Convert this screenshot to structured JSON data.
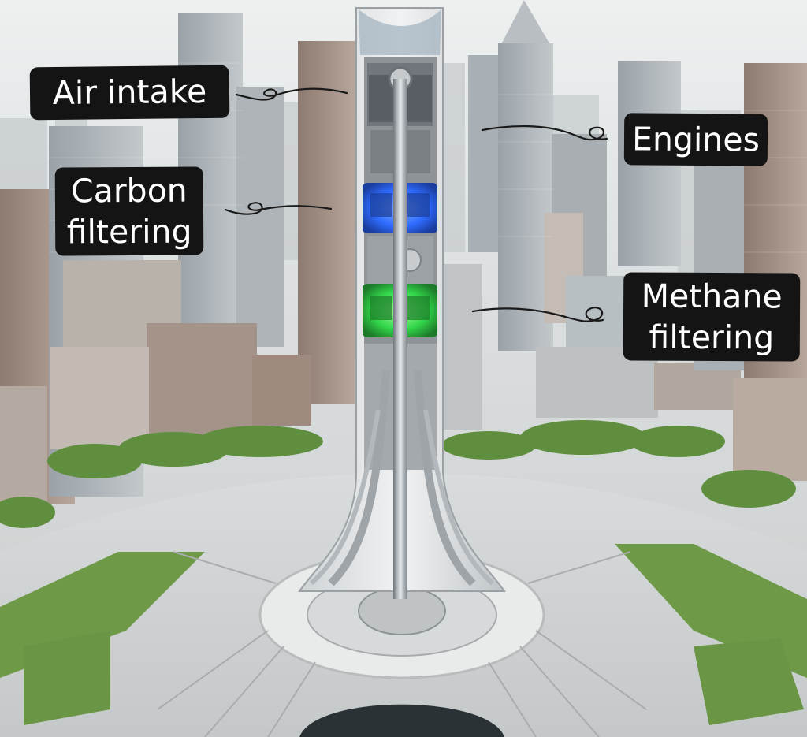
{
  "labels": {
    "air_intake": "Air intake",
    "engines": "Engines",
    "carbon_filtering": "Carbon\nfiltering",
    "methane_filtering": "Methane\nfiltering"
  },
  "colors": {
    "sky": "#dfe3e4",
    "label_background": "#141414",
    "label_text": "#ffffff",
    "carbon_glow": "#2f6cff",
    "methane_glow": "#33d64a",
    "greenery": "#5f8f3e"
  }
}
